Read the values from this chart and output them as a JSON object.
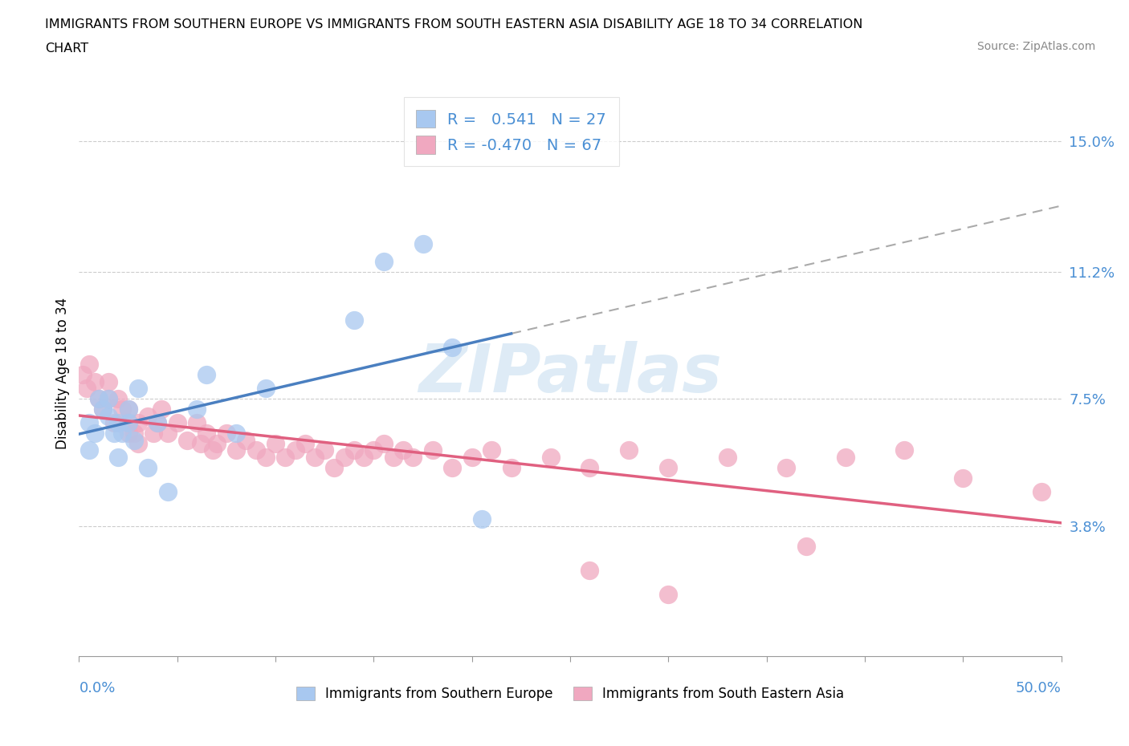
{
  "title_line1": "IMMIGRANTS FROM SOUTHERN EUROPE VS IMMIGRANTS FROM SOUTH EASTERN ASIA DISABILITY AGE 18 TO 34 CORRELATION",
  "title_line2": "CHART",
  "source_text": "Source: ZipAtlas.com",
  "ylabel": "Disability Age 18 to 34",
  "xlim": [
    0.0,
    0.5
  ],
  "ylim": [
    0.0,
    0.165
  ],
  "yticks": [
    0.038,
    0.075,
    0.112,
    0.15
  ],
  "ytick_labels": [
    "3.8%",
    "7.5%",
    "11.2%",
    "15.0%"
  ],
  "xtick_left_label": "0.0%",
  "xtick_right_label": "50.0%",
  "R_blue": 0.541,
  "N_blue": 27,
  "R_pink": -0.47,
  "N_pink": 67,
  "color_blue": "#a8c8f0",
  "color_pink": "#f0a8c0",
  "color_blue_line": "#4a7fc0",
  "color_pink_line": "#e06080",
  "legend_label_blue": "Immigrants from Southern Europe",
  "legend_label_pink": "Immigrants from South Eastern Asia",
  "blue_x": [
    0.005,
    0.005,
    0.008,
    0.01,
    0.012,
    0.015,
    0.015,
    0.018,
    0.02,
    0.02,
    0.022,
    0.025,
    0.025,
    0.028,
    0.03,
    0.035,
    0.04,
    0.045,
    0.06,
    0.065,
    0.08,
    0.095,
    0.14,
    0.155,
    0.175,
    0.19,
    0.205
  ],
  "blue_y": [
    0.06,
    0.068,
    0.065,
    0.075,
    0.072,
    0.07,
    0.075,
    0.065,
    0.068,
    0.058,
    0.065,
    0.072,
    0.068,
    0.063,
    0.078,
    0.055,
    0.068,
    0.048,
    0.072,
    0.082,
    0.065,
    0.078,
    0.098,
    0.115,
    0.12,
    0.09,
    0.04
  ],
  "pink_x": [
    0.002,
    0.004,
    0.005,
    0.008,
    0.01,
    0.012,
    0.015,
    0.015,
    0.018,
    0.02,
    0.022,
    0.025,
    0.025,
    0.025,
    0.028,
    0.03,
    0.03,
    0.035,
    0.038,
    0.04,
    0.042,
    0.045,
    0.05,
    0.055,
    0.06,
    0.062,
    0.065,
    0.068,
    0.07,
    0.075,
    0.08,
    0.085,
    0.09,
    0.095,
    0.1,
    0.105,
    0.11,
    0.115,
    0.12,
    0.125,
    0.13,
    0.135,
    0.14,
    0.145,
    0.15,
    0.155,
    0.16,
    0.165,
    0.17,
    0.18,
    0.19,
    0.2,
    0.21,
    0.22,
    0.24,
    0.26,
    0.28,
    0.3,
    0.33,
    0.36,
    0.39,
    0.42,
    0.45,
    0.26,
    0.3,
    0.37,
    0.49
  ],
  "pink_y": [
    0.082,
    0.078,
    0.085,
    0.08,
    0.075,
    0.072,
    0.075,
    0.08,
    0.068,
    0.075,
    0.072,
    0.065,
    0.068,
    0.072,
    0.065,
    0.062,
    0.068,
    0.07,
    0.065,
    0.068,
    0.072,
    0.065,
    0.068,
    0.063,
    0.068,
    0.062,
    0.065,
    0.06,
    0.062,
    0.065,
    0.06,
    0.063,
    0.06,
    0.058,
    0.062,
    0.058,
    0.06,
    0.062,
    0.058,
    0.06,
    0.055,
    0.058,
    0.06,
    0.058,
    0.06,
    0.062,
    0.058,
    0.06,
    0.058,
    0.06,
    0.055,
    0.058,
    0.06,
    0.055,
    0.058,
    0.055,
    0.06,
    0.055,
    0.058,
    0.055,
    0.058,
    0.06,
    0.052,
    0.025,
    0.018,
    0.032,
    0.048
  ],
  "watermark_text": "ZIPatlas",
  "watermark_color": "#c8dff0"
}
